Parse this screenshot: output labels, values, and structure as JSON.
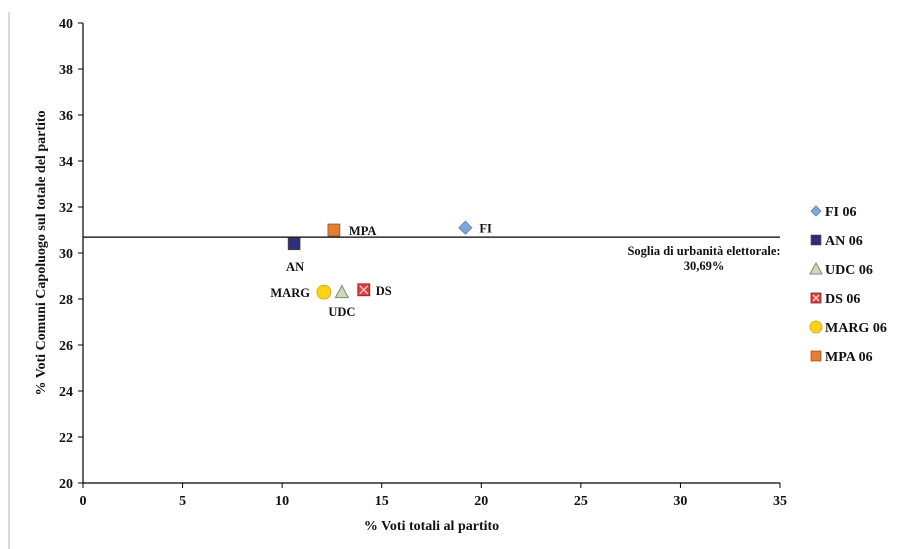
{
  "chart_data": {
    "type": "scatter",
    "xlabel": "% Voti totali al partito",
    "ylabel": "% Voti Comuni Capoluogo sul totale del partito",
    "xlim": [
      0,
      35
    ],
    "ylim": [
      20,
      40
    ],
    "xticks": [
      0,
      5,
      10,
      15,
      20,
      25,
      30,
      35
    ],
    "yticks": [
      20,
      22,
      24,
      26,
      28,
      30,
      32,
      34,
      36,
      38,
      40
    ],
    "grid": false,
    "legend_position": "right",
    "series": [
      {
        "name": "FI 06",
        "label": "FI",
        "marker": "diamond",
        "color": "#7ea6d8",
        "x": 19.2,
        "y": 31.1
      },
      {
        "name": "AN 06",
        "label": "AN",
        "marker": "square",
        "color": "#2e2f7a",
        "x": 10.6,
        "y": 30.4
      },
      {
        "name": "UDC 06",
        "label": "UDC",
        "marker": "triangle",
        "color": "#c8d9bf",
        "x": 13.0,
        "y": 28.3
      },
      {
        "name": "DS 06",
        "label": "DS",
        "marker": "xsquare",
        "color": "#d9413f",
        "x": 14.1,
        "y": 28.4
      },
      {
        "name": "MARG 06",
        "label": "MARG",
        "marker": "circle",
        "color": "#ffd21a",
        "x": 12.1,
        "y": 28.3
      },
      {
        "name": "MPA 06",
        "label": "MPA",
        "marker": "square",
        "color": "#e87e35",
        "x": 12.6,
        "y": 31.0
      }
    ],
    "reference_line": {
      "y": 30.69,
      "label_line1": "Soglia di urbanità elettorale:",
      "label_line2": "30,69%"
    }
  }
}
